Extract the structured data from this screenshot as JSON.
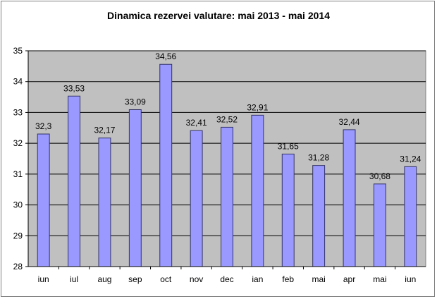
{
  "chart_data": {
    "type": "bar",
    "title": "Dinamica rezervei valutare: mai 2013 - mai 2014",
    "xlabel": "",
    "ylabel": "",
    "categories": [
      "iun",
      "iul",
      "aug",
      "sep",
      "oct",
      "nov",
      "dec",
      "ian",
      "feb",
      "mai",
      "apr",
      "mai",
      "iun"
    ],
    "values": [
      32.3,
      33.53,
      32.17,
      33.09,
      34.56,
      32.41,
      32.52,
      32.91,
      31.65,
      31.28,
      32.44,
      30.68,
      31.24
    ],
    "value_labels": [
      "32,3",
      "33,53",
      "32,17",
      "33,09",
      "34,56",
      "32,41",
      "32,52",
      "32,91",
      "31,65",
      "31,28",
      "32,44",
      "30,68",
      "31,24"
    ],
    "ylim": [
      28,
      35
    ],
    "yticks": [
      28,
      29,
      30,
      31,
      32,
      33,
      34,
      35
    ],
    "grid": true,
    "legend": "none",
    "colors": {
      "bar_fill": "#9999ff",
      "bar_stroke": "#333366",
      "plot_bg": "#c0c0c0",
      "gridline": "#000000"
    }
  }
}
